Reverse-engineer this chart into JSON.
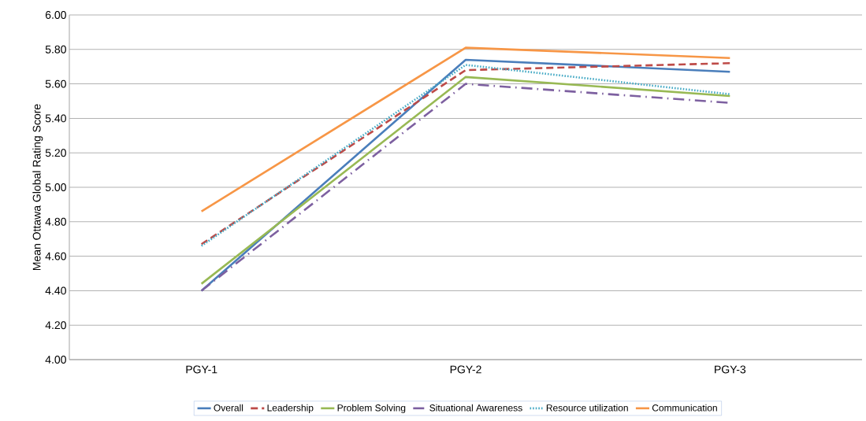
{
  "chart_data": {
    "type": "line",
    "ylabel": "Mean Ottawa Global Rating Score",
    "categories": [
      "PGY-1",
      "PGY-2",
      "PGY-3"
    ],
    "series": [
      {
        "name": "Overall",
        "color": "#4a7ebb",
        "line_style": "solid",
        "values": [
          4.4,
          5.74,
          5.67
        ]
      },
      {
        "name": "Leadership",
        "color": "#be4b48",
        "line_style": "dashed",
        "values": [
          4.67,
          5.68,
          5.72
        ]
      },
      {
        "name": "Problem Solving",
        "color": "#98b954",
        "line_style": "solid",
        "values": [
          4.44,
          5.64,
          5.53
        ]
      },
      {
        "name": "Situational Awareness",
        "color": "#7d60a0",
        "line_style": "dashdot",
        "values": [
          4.4,
          5.6,
          5.49
        ]
      },
      {
        "name": "Resource utilization",
        "color": "#46aac5",
        "line_style": "dotted",
        "values": [
          4.66,
          5.71,
          5.54
        ]
      },
      {
        "name": "Communication",
        "color": "#f79646",
        "line_style": "solid",
        "values": [
          4.86,
          5.81,
          5.75
        ]
      }
    ],
    "ylim": [
      4.0,
      6.0
    ],
    "yticks": [
      {
        "value": 4.0,
        "label": "4.00"
      },
      {
        "value": 4.2,
        "label": "4.20"
      },
      {
        "value": 4.4,
        "label": "4.40"
      },
      {
        "value": 4.6,
        "label": "4.60"
      },
      {
        "value": 4.8,
        "label": "4.80"
      },
      {
        "value": 5.0,
        "label": "5.00"
      },
      {
        "value": 5.2,
        "label": "5.20"
      },
      {
        "value": 5.4,
        "label": "5.40"
      },
      {
        "value": 5.6,
        "label": "5.60"
      },
      {
        "value": 5.8,
        "label": "5.80"
      },
      {
        "value": 6.0,
        "label": "6.00"
      }
    ],
    "grid": "y",
    "legend": "bottom",
    "marker": "none"
  }
}
